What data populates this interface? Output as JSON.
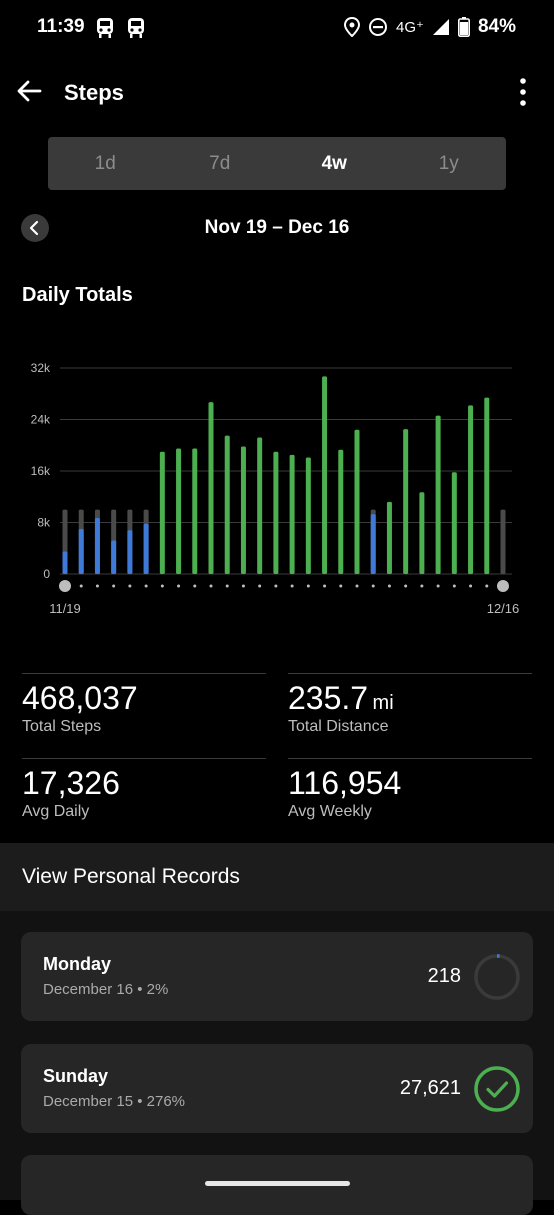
{
  "status_bar": {
    "time": "11:39",
    "network": "4G⁺",
    "battery": "84%"
  },
  "app_bar": {
    "title": "Steps"
  },
  "period_tabs": [
    {
      "label": "1d",
      "active": false
    },
    {
      "label": "7d",
      "active": false
    },
    {
      "label": "4w",
      "active": true
    },
    {
      "label": "1y",
      "active": false
    }
  ],
  "date_range": "Nov 19 – Dec 16",
  "section_title": "Daily Totals",
  "chart_data": {
    "type": "bar",
    "yticks": [
      "32k",
      "24k",
      "16k",
      "8k",
      "0"
    ],
    "ylim": [
      0,
      32000
    ],
    "goal": 10000,
    "x_start_label": "11/19",
    "x_end_label": "12/16",
    "values": [
      3500,
      7000,
      8700,
      5200,
      6800,
      7800,
      19000,
      19500,
      19500,
      26700,
      21500,
      19800,
      21200,
      19000,
      18500,
      18100,
      30700,
      19300,
      22400,
      9300,
      11200,
      22500,
      12700,
      24600,
      15800,
      26200,
      27400,
      218
    ],
    "colors": {
      "goal_met": "#4caf50",
      "below_goal": "#3f7ad8",
      "goal_track": "#4a4a4a",
      "grid": "#3a3a3a"
    }
  },
  "stats": {
    "total_steps": {
      "value": "468,037",
      "label": "Total Steps"
    },
    "total_distance": {
      "value": "235.7",
      "unit": "mi",
      "label": "Total Distance"
    },
    "avg_daily": {
      "value": "17,326",
      "label": "Avg Daily"
    },
    "avg_weekly": {
      "value": "116,954",
      "label": "Avg Weekly"
    }
  },
  "personal_records_label": "View Personal Records",
  "day_cards": [
    {
      "day": "Monday",
      "sub": "December 16 • 2%",
      "steps": "218",
      "progress": 0.02,
      "ring": "progress"
    },
    {
      "day": "Sunday",
      "sub": "December 15 • 276%",
      "steps": "27,621",
      "progress": 2.76,
      "ring": "check"
    }
  ],
  "icons": {
    "status": [
      "train-icon",
      "train-icon",
      "location-icon",
      "do-not-disturb-icon",
      "signal-icon",
      "battery-icon"
    ],
    "back": "arrow-left-icon",
    "more": "more-vert-icon",
    "prev": "chevron-left-icon",
    "check": "check-icon"
  }
}
